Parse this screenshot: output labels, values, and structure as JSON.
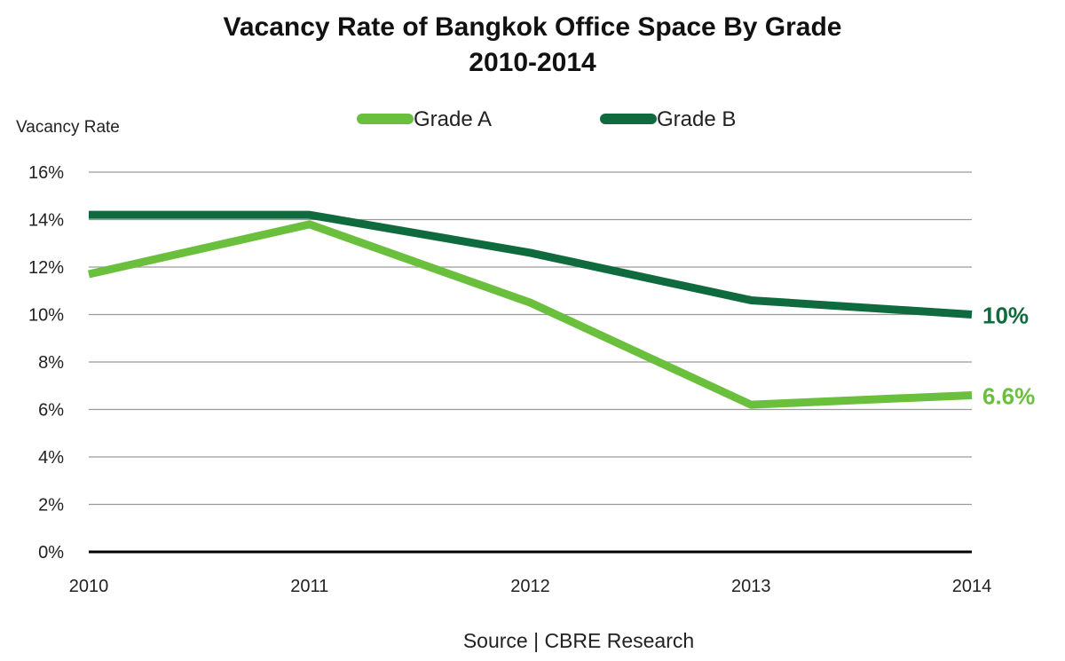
{
  "chart_data": {
    "type": "line",
    "title": "Vacancy Rate of Bangkok Office Space By Grade",
    "subtitle": "2010-2014",
    "ylabel": "Vacancy Rate",
    "xlabel": "",
    "x": [
      "2010",
      "2011",
      "2012",
      "2013",
      "2014"
    ],
    "ylim": [
      0,
      16
    ],
    "yticks": [
      0,
      2,
      4,
      6,
      8,
      10,
      12,
      14,
      16
    ],
    "ytick_labels": [
      "0%",
      "2%",
      "4%",
      "6%",
      "8%",
      "10%",
      "12%",
      "14%",
      "16%"
    ],
    "grid": true,
    "legend_position": "top-center",
    "series": [
      {
        "name": "Grade A",
        "values": [
          11.7,
          13.8,
          10.5,
          6.2,
          6.6
        ],
        "color": "#6abf3c",
        "end_label": "6.6%"
      },
      {
        "name": "Grade B",
        "values": [
          14.2,
          14.2,
          12.6,
          10.6,
          10.0
        ],
        "color": "#0f6b3e",
        "end_label": "10%"
      }
    ],
    "source": "Source | CBRE Research"
  }
}
